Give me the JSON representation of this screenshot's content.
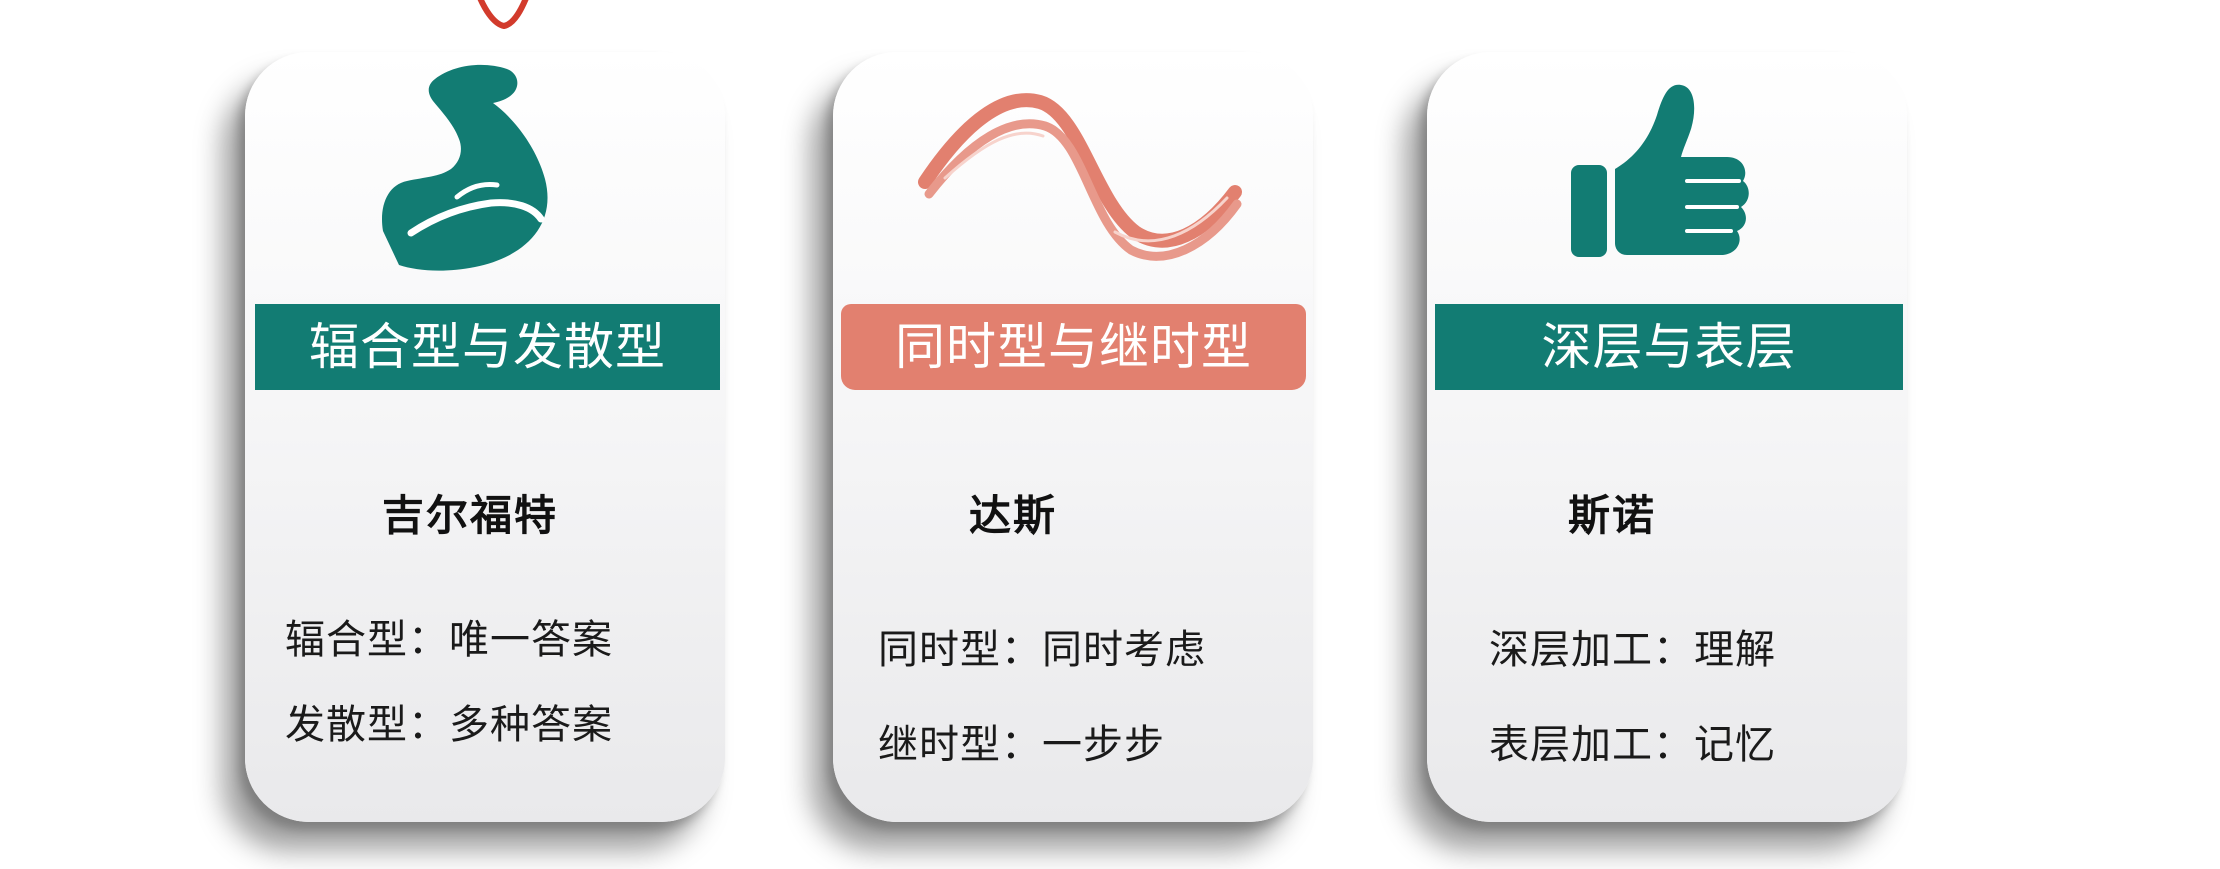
{
  "cards": [
    {
      "banner": "辐合型与发散型",
      "author": "吉尔福特",
      "line1": "辐合型：唯一答案",
      "line2": "发散型：多种答案",
      "icon": "flexed-arm-icon",
      "color": "#127c73"
    },
    {
      "banner": "同时型与继时型",
      "author": "达斯",
      "line1": "同时型：同时考虑",
      "line2": "继时型：一步步",
      "icon": "wave-ribbon-icon",
      "color": "#e2806f"
    },
    {
      "banner": "深层与表层",
      "author": "斯诺",
      "line1": "深层加工：理解",
      "line2": "表层加工：记忆",
      "icon": "thumbs-up-icon",
      "color": "#127c73"
    }
  ]
}
